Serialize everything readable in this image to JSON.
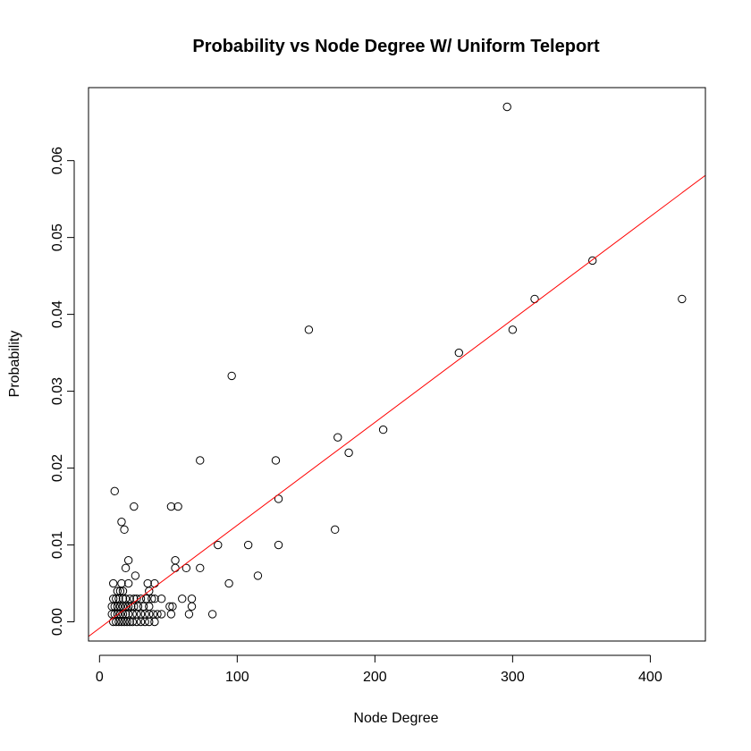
{
  "chart_data": {
    "type": "scatter",
    "title": "Probability vs Node Degree W/ Uniform Teleport",
    "xlabel": "Node Degree",
    "ylabel": "Probability",
    "xlim": [
      -8,
      440
    ],
    "ylim": [
      -0.0025,
      0.0695
    ],
    "x_ticks": [
      0,
      100,
      200,
      300,
      400
    ],
    "y_ticks": [
      0.0,
      0.01,
      0.02,
      0.03,
      0.04,
      0.05,
      0.06
    ],
    "x_tick_labels": [
      "0",
      "100",
      "200",
      "300",
      "400"
    ],
    "y_tick_labels": [
      "0.00",
      "0.01",
      "0.02",
      "0.03",
      "0.04",
      "0.05",
      "0.06"
    ],
    "grid": false,
    "point_color": "#000000",
    "line_color": "#ff0000",
    "fit_line": {
      "intercept": -0.00083,
      "slope": 0.0001339
    },
    "points": [
      [
        296,
        0.067
      ],
      [
        358,
        0.047
      ],
      [
        423,
        0.042
      ],
      [
        316,
        0.042
      ],
      [
        300,
        0.038
      ],
      [
        152,
        0.038
      ],
      [
        261,
        0.035
      ],
      [
        96,
        0.032
      ],
      [
        206,
        0.025
      ],
      [
        173,
        0.024
      ],
      [
        181,
        0.022
      ],
      [
        73,
        0.021
      ],
      [
        128,
        0.021
      ],
      [
        11,
        0.017
      ],
      [
        130,
        0.016
      ],
      [
        25,
        0.015
      ],
      [
        52,
        0.015
      ],
      [
        57,
        0.015
      ],
      [
        16,
        0.013
      ],
      [
        18,
        0.012
      ],
      [
        171,
        0.012
      ],
      [
        86,
        0.01
      ],
      [
        108,
        0.01
      ],
      [
        130,
        0.01
      ],
      [
        21,
        0.008
      ],
      [
        55,
        0.008
      ],
      [
        19,
        0.007
      ],
      [
        55,
        0.007
      ],
      [
        63,
        0.007
      ],
      [
        73,
        0.007
      ],
      [
        26,
        0.006
      ],
      [
        115,
        0.006
      ],
      [
        10,
        0.005
      ],
      [
        16,
        0.005
      ],
      [
        21,
        0.005
      ],
      [
        35,
        0.005
      ],
      [
        40,
        0.005
      ],
      [
        94,
        0.005
      ],
      [
        13,
        0.004
      ],
      [
        15,
        0.004
      ],
      [
        17,
        0.004
      ],
      [
        36,
        0.004
      ],
      [
        10,
        0.003
      ],
      [
        12,
        0.003
      ],
      [
        14,
        0.003
      ],
      [
        17,
        0.003
      ],
      [
        19,
        0.003
      ],
      [
        22,
        0.003
      ],
      [
        25,
        0.003
      ],
      [
        27,
        0.003
      ],
      [
        30,
        0.003
      ],
      [
        34,
        0.003
      ],
      [
        38,
        0.003
      ],
      [
        40,
        0.003
      ],
      [
        45,
        0.003
      ],
      [
        60,
        0.003
      ],
      [
        67,
        0.003
      ],
      [
        9,
        0.002
      ],
      [
        11,
        0.002
      ],
      [
        13,
        0.002
      ],
      [
        15,
        0.002
      ],
      [
        17,
        0.002
      ],
      [
        19,
        0.002
      ],
      [
        21,
        0.002
      ],
      [
        23,
        0.002
      ],
      [
        25,
        0.002
      ],
      [
        28,
        0.002
      ],
      [
        32,
        0.002
      ],
      [
        36,
        0.002
      ],
      [
        51,
        0.002
      ],
      [
        53,
        0.002
      ],
      [
        67,
        0.002
      ],
      [
        9,
        0.001
      ],
      [
        11,
        0.001
      ],
      [
        13,
        0.001
      ],
      [
        15,
        0.001
      ],
      [
        17,
        0.001
      ],
      [
        19,
        0.001
      ],
      [
        21,
        0.001
      ],
      [
        24,
        0.001
      ],
      [
        27,
        0.001
      ],
      [
        30,
        0.001
      ],
      [
        33,
        0.001
      ],
      [
        36,
        0.001
      ],
      [
        39,
        0.001
      ],
      [
        42,
        0.001
      ],
      [
        45,
        0.001
      ],
      [
        52,
        0.001
      ],
      [
        65,
        0.001
      ],
      [
        82,
        0.001
      ],
      [
        10,
        0.0
      ],
      [
        12,
        0.0
      ],
      [
        14,
        0.0
      ],
      [
        16,
        0.0
      ],
      [
        18,
        0.0
      ],
      [
        20,
        0.0
      ],
      [
        22,
        0.0
      ],
      [
        24,
        0.0
      ],
      [
        27,
        0.0
      ],
      [
        30,
        0.0
      ],
      [
        33,
        0.0
      ],
      [
        36,
        0.0
      ],
      [
        40,
        0.0
      ]
    ]
  }
}
